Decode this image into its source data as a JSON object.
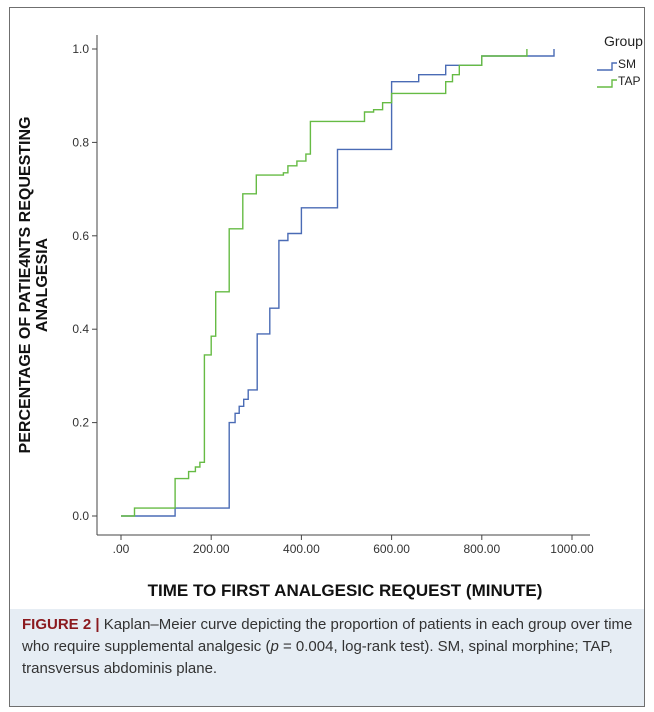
{
  "chart_data": {
    "type": "line",
    "step": true,
    "x_ticks": [
      ".00",
      "200.00",
      "400.00",
      "600.00",
      "800.00",
      "1000.00"
    ],
    "y_ticks": [
      "0.0",
      "0.2",
      "0.4",
      "0.6",
      "0.8",
      "1.0"
    ],
    "xlim": [
      0,
      1000
    ],
    "ylim": [
      0,
      1.0
    ],
    "xlabel": "TIME TO FIRST ANALGESIC REQUEST (MINUTE)",
    "ylabel_line1": "PERCENTAGE OF PATIE4NTS REQUESTING",
    "ylabel_line2": "ANALGESIA",
    "legend": {
      "title": "Group",
      "placement": "top-right"
    },
    "grid": false,
    "series": [
      {
        "name": "SM",
        "color": "#4a6bb5",
        "x": [
          0,
          120,
          240,
          253,
          262,
          272,
          282,
          302,
          330,
          350,
          370,
          400,
          420,
          480,
          600,
          660,
          720,
          800,
          960,
          960
        ],
        "y": [
          0,
          0.017,
          0.2,
          0.22,
          0.235,
          0.25,
          0.27,
          0.39,
          0.445,
          0.59,
          0.605,
          0.66,
          0.66,
          0.785,
          0.93,
          0.945,
          0.965,
          0.985,
          0.985,
          1.0
        ]
      },
      {
        "name": "TAP",
        "color": "#66bb44",
        "x": [
          0,
          30,
          120,
          150,
          165,
          175,
          185,
          200,
          210,
          225,
          240,
          255,
          270,
          300,
          360,
          370,
          390,
          410,
          420,
          490,
          540,
          560,
          580,
          600,
          690,
          720,
          735,
          750,
          770,
          800,
          900,
          900
        ],
        "y": [
          0,
          0.017,
          0.08,
          0.095,
          0.105,
          0.115,
          0.345,
          0.385,
          0.48,
          0.48,
          0.615,
          0.615,
          0.69,
          0.73,
          0.735,
          0.75,
          0.76,
          0.775,
          0.845,
          0.845,
          0.865,
          0.87,
          0.885,
          0.905,
          0.905,
          0.93,
          0.945,
          0.965,
          0.965,
          0.985,
          0.985,
          1.0
        ]
      }
    ]
  },
  "caption": {
    "label": "FIGURE 2 |",
    "text_before_p": " Kaplan–Meier curve depicting the proportion of patients in each group over time who require supplemental analgesic (",
    "p_symbol": "p",
    "text_after_p": " = 0.004, log-rank test). SM, spinal morphine; TAP, transversus abdominis plane."
  }
}
